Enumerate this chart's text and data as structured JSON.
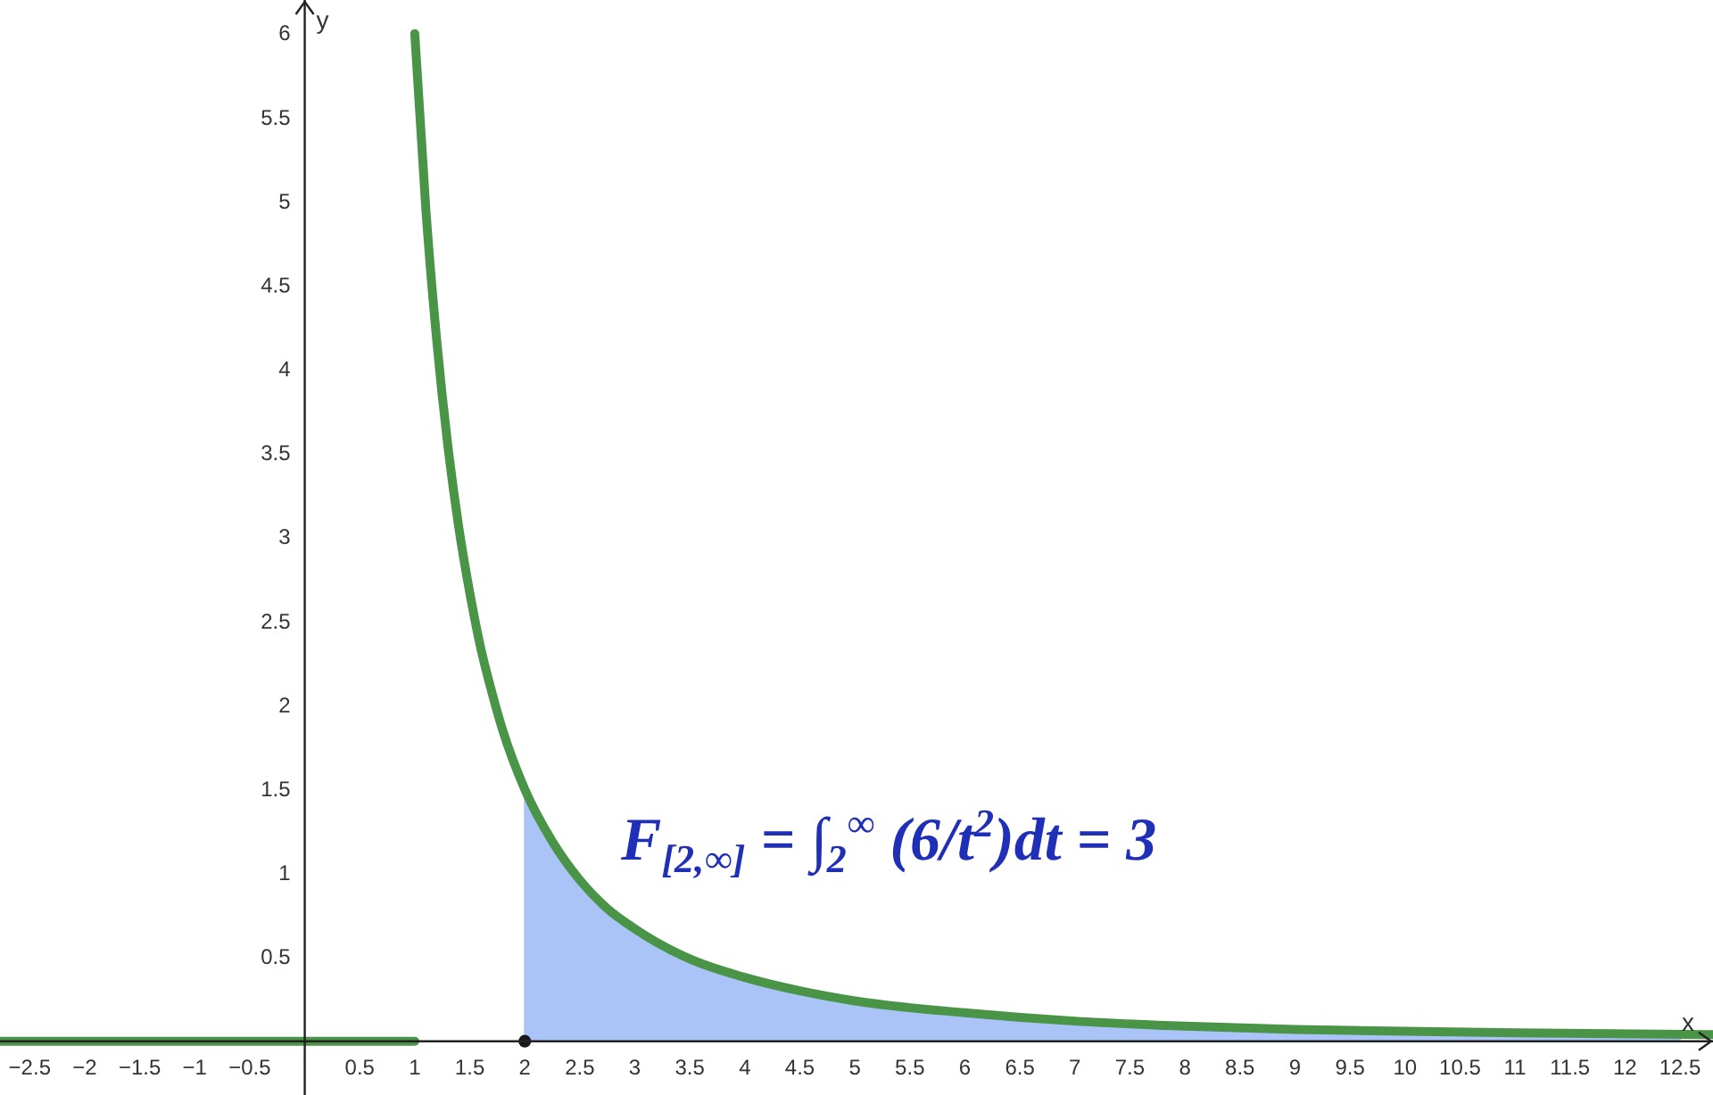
{
  "chart_data": {
    "type": "line",
    "xlabel": "x",
    "ylabel": "y",
    "xlim": [
      -2.77,
      12.8
    ],
    "ylim": [
      -0.32,
      6.2
    ],
    "xticks": [
      {
        "value": -2.5,
        "label": "−2.5"
      },
      {
        "value": -2,
        "label": "−2"
      },
      {
        "value": -1.5,
        "label": "−1.5"
      },
      {
        "value": -1,
        "label": "−1"
      },
      {
        "value": -0.5,
        "label": "−0.5"
      },
      0.5,
      1,
      1.5,
      2,
      2.5,
      3,
      3.5,
      4,
      4.5,
      5,
      5.5,
      6,
      6.5,
      7,
      7.5,
      8,
      8.5,
      9,
      9.5,
      10,
      10.5,
      11,
      11.5,
      12,
      12.5
    ],
    "yticks": [
      0.5,
      1,
      1.5,
      2,
      2.5,
      3,
      3.5,
      4,
      4.5,
      5,
      5.5,
      6
    ],
    "grid": false,
    "series": [
      {
        "type": "area",
        "color": "#abc4f7",
        "x": [
          2,
          2.25,
          2.5,
          2.75,
          3,
          3.5,
          4,
          4.5,
          5,
          6,
          7,
          8,
          9,
          10,
          11,
          12.5
        ],
        "values": [
          1.5,
          1.19,
          0.96,
          0.79,
          0.67,
          0.49,
          0.38,
          0.3,
          0.24,
          0.17,
          0.12,
          0.09,
          0.07,
          0.06,
          0.05,
          0.04
        ]
      },
      {
        "type": "line",
        "color": "#4a9447",
        "x": [
          -2.77,
          1
        ],
        "values": [
          0,
          0
        ]
      },
      {
        "color": "#4a9447",
        "x": [
          1,
          1.1,
          1.2,
          1.3,
          1.4,
          1.5,
          1.6,
          1.7,
          1.8,
          2,
          2.25,
          2.5,
          2.75,
          3,
          3.5,
          4,
          4.5,
          5,
          6,
          7,
          8,
          9,
          10,
          11,
          12.8
        ],
        "values": [
          6,
          4.96,
          4.17,
          3.55,
          3.06,
          2.67,
          2.34,
          2.08,
          1.85,
          1.5,
          1.19,
          0.96,
          0.79,
          0.67,
          0.49,
          0.38,
          0.3,
          0.24,
          0.17,
          0.12,
          0.09,
          0.07,
          0.06,
          0.05,
          0.04
        ]
      },
      {
        "type": "scatter",
        "color": "#1a1a1a",
        "x": [
          2
        ],
        "values": [
          0
        ],
        "marker": "circle"
      }
    ],
    "annotations": [
      "F$_{[2,∞]}$ = ∫$_{2}$$^{∞}$ (6/t$^{2}$)dt = 3"
    ]
  }
}
